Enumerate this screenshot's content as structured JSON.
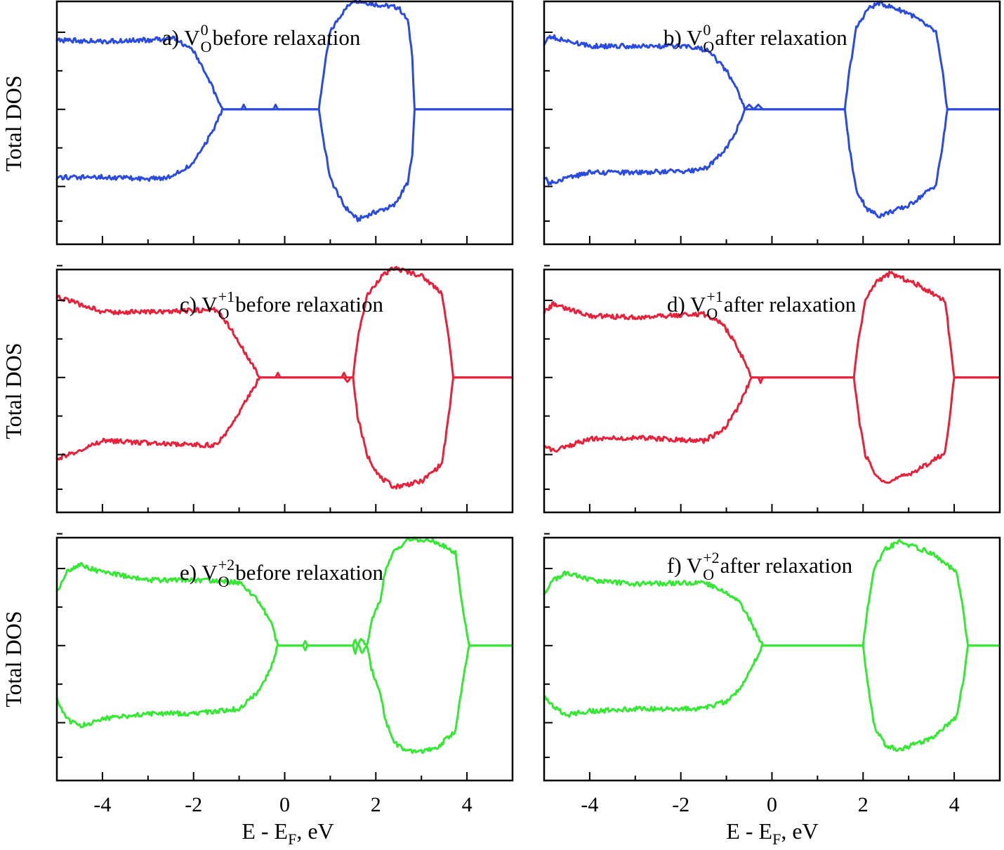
{
  "figure": {
    "y_label": "Total DOS",
    "x_label": "E - E",
    "x_label_sub": "F",
    "x_label_unit": ", eV"
  },
  "chart_data": [
    {
      "type": "line",
      "panel": "a",
      "color": "#2a4be0",
      "title": {
        "prefix": "a) V",
        "sup": "0",
        "sub": "O",
        "suffix": " before relaxation"
      },
      "xlim": [
        -5,
        5
      ],
      "x_ticks": [
        -4,
        -2,
        0,
        2,
        4
      ],
      "ylim": [
        -1.75,
        1.4
      ],
      "y_ticks": [
        -1.45,
        -1,
        -0.5,
        0,
        0.5,
        1,
        1.45
      ],
      "gap": [
        -1.35,
        0.75
      ],
      "band": [
        0.75,
        2.85
      ],
      "spin_up": [
        [
          -5,
          0.9
        ],
        [
          -4,
          0.88
        ],
        [
          -3,
          0.9
        ],
        [
          -2.4,
          0.92
        ],
        [
          -2,
          0.75
        ],
        [
          -1.6,
          0.3
        ],
        [
          -1.45,
          0.08
        ],
        [
          -1.35,
          0
        ],
        [
          -0.95,
          0
        ],
        [
          -0.9,
          0.06
        ],
        [
          -0.85,
          0
        ],
        [
          -0.25,
          0
        ],
        [
          -0.2,
          0.06
        ],
        [
          -0.15,
          0
        ],
        [
          0.75,
          0
        ],
        [
          0.85,
          0.45
        ],
        [
          1.0,
          1.0
        ],
        [
          1.2,
          1.2
        ],
        [
          1.5,
          1.42
        ],
        [
          2,
          1.36
        ],
        [
          2.5,
          1.32
        ],
        [
          2.7,
          1.15
        ],
        [
          2.8,
          0.7
        ],
        [
          2.85,
          0
        ]
      ],
      "spin_down": [
        [
          -5,
          -0.88
        ],
        [
          -4,
          -0.88
        ],
        [
          -3,
          -0.9
        ],
        [
          -2.5,
          -0.88
        ],
        [
          -2,
          -0.7
        ],
        [
          -1.6,
          -0.3
        ],
        [
          -1.35,
          0
        ],
        [
          0.75,
          0
        ],
        [
          0.85,
          -0.4
        ],
        [
          1.0,
          -0.9
        ],
        [
          1.3,
          -1.25
        ],
        [
          1.6,
          -1.43
        ],
        [
          2,
          -1.33
        ],
        [
          2.4,
          -1.25
        ],
        [
          2.7,
          -0.95
        ],
        [
          2.8,
          -0.6
        ],
        [
          2.85,
          0
        ]
      ]
    },
    {
      "type": "line",
      "panel": "b",
      "color": "#2a4be0",
      "title": {
        "prefix": "b) V",
        "sup": "0",
        "sub": "O",
        "suffix": " after relaxation"
      },
      "xlim": [
        -5,
        5
      ],
      "x_ticks": [
        -4,
        -2,
        0,
        2,
        4
      ],
      "ylim": [
        -1.75,
        1.4
      ],
      "y_ticks": [
        -1.45,
        -1,
        -0.5,
        0,
        0.5,
        1,
        1.45
      ],
      "gap": [
        -0.6,
        1.6
      ],
      "band": [
        1.6,
        3.85
      ],
      "spin_up": [
        [
          -5,
          0.85
        ],
        [
          -4.9,
          0.95
        ],
        [
          -4,
          0.82
        ],
        [
          -3,
          0.82
        ],
        [
          -1.8,
          0.82
        ],
        [
          -1.4,
          0.76
        ],
        [
          -1.0,
          0.5
        ],
        [
          -0.8,
          0.3
        ],
        [
          -0.65,
          0.08
        ],
        [
          -0.6,
          0
        ],
        [
          -0.5,
          0.06
        ],
        [
          -0.4,
          0
        ],
        [
          -0.3,
          0.06
        ],
        [
          -0.2,
          0
        ],
        [
          1.6,
          0
        ],
        [
          1.7,
          0.5
        ],
        [
          1.85,
          1.05
        ],
        [
          2.1,
          1.3
        ],
        [
          2.35,
          1.38
        ],
        [
          3,
          1.25
        ],
        [
          3.6,
          1.0
        ],
        [
          3.75,
          0.45
        ],
        [
          3.85,
          0
        ]
      ],
      "spin_down": [
        [
          -5,
          -0.88
        ],
        [
          -4.9,
          -0.95
        ],
        [
          -4,
          -0.82
        ],
        [
          -3,
          -0.82
        ],
        [
          -1.8,
          -0.8
        ],
        [
          -1.4,
          -0.75
        ],
        [
          -1.0,
          -0.5
        ],
        [
          -0.8,
          -0.3
        ],
        [
          -0.6,
          0
        ],
        [
          1.6,
          0
        ],
        [
          1.7,
          -0.5
        ],
        [
          1.85,
          -1.05
        ],
        [
          2.1,
          -1.3
        ],
        [
          2.35,
          -1.38
        ],
        [
          3,
          -1.25
        ],
        [
          3.6,
          -0.98
        ],
        [
          3.75,
          -0.45
        ],
        [
          3.85,
          0
        ]
      ]
    },
    {
      "type": "line",
      "panel": "c",
      "color": "#e8203a",
      "title": {
        "prefix": "c) V",
        "sup": "+1",
        "sub": "O",
        "suffix": " before relaxation"
      },
      "xlim": [
        -5,
        5
      ],
      "x_ticks": [
        -4,
        -2,
        0,
        2,
        4
      ],
      "ylim": [
        -1.75,
        1.4
      ],
      "y_ticks": [
        -1.45,
        -1,
        -0.5,
        0,
        0.5,
        1,
        1.45
      ],
      "gap": [
        -0.55,
        1.5
      ],
      "band": [
        1.5,
        3.7
      ],
      "spin_up": [
        [
          -5,
          1.05
        ],
        [
          -4.5,
          0.95
        ],
        [
          -4,
          0.85
        ],
        [
          -3,
          0.85
        ],
        [
          -1.5,
          0.88
        ],
        [
          -1.2,
          0.65
        ],
        [
          -0.9,
          0.35
        ],
        [
          -0.7,
          0.15
        ],
        [
          -0.55,
          0
        ],
        [
          -0.2,
          0
        ],
        [
          -0.15,
          0.06
        ],
        [
          -0.1,
          0
        ],
        [
          1.25,
          0
        ],
        [
          1.3,
          0.06
        ],
        [
          1.35,
          0
        ],
        [
          1.5,
          0
        ],
        [
          1.6,
          0.5
        ],
        [
          1.8,
          1.05
        ],
        [
          2.1,
          1.3
        ],
        [
          2.4,
          1.42
        ],
        [
          3,
          1.32
        ],
        [
          3.45,
          1.1
        ],
        [
          3.6,
          0.5
        ],
        [
          3.7,
          0
        ]
      ],
      "spin_down": [
        [
          -5,
          -1.05
        ],
        [
          -4.5,
          -0.95
        ],
        [
          -4,
          -0.82
        ],
        [
          -3,
          -0.85
        ],
        [
          -1.5,
          -0.88
        ],
        [
          -1.2,
          -0.65
        ],
        [
          -0.9,
          -0.35
        ],
        [
          -0.7,
          -0.15
        ],
        [
          -0.55,
          0
        ],
        [
          1.3,
          0
        ],
        [
          1.38,
          -0.06
        ],
        [
          1.45,
          0
        ],
        [
          1.5,
          0
        ],
        [
          1.6,
          -0.5
        ],
        [
          1.8,
          -1.0
        ],
        [
          2.1,
          -1.3
        ],
        [
          2.4,
          -1.42
        ],
        [
          3,
          -1.35
        ],
        [
          3.45,
          -1.12
        ],
        [
          3.6,
          -0.5
        ],
        [
          3.7,
          0
        ]
      ]
    },
    {
      "type": "line",
      "panel": "d",
      "color": "#e8203a",
      "title": {
        "prefix": "d) V",
        "sup": "+1",
        "sub": "O",
        "suffix": " after relaxation"
      },
      "xlim": [
        -5,
        5
      ],
      "x_ticks": [
        -4,
        -2,
        0,
        2,
        4
      ],
      "ylim": [
        -1.75,
        1.4
      ],
      "y_ticks": [
        -1.45,
        -1,
        -0.5,
        0,
        0.5,
        1,
        1.45
      ],
      "gap": [
        -0.45,
        1.8
      ],
      "band": [
        1.8,
        4.0
      ],
      "spin_up": [
        [
          -5,
          0.85
        ],
        [
          -4.8,
          0.95
        ],
        [
          -4,
          0.8
        ],
        [
          -3,
          0.78
        ],
        [
          -1.5,
          0.82
        ],
        [
          -1.1,
          0.7
        ],
        [
          -0.8,
          0.45
        ],
        [
          -0.6,
          0.2
        ],
        [
          -0.45,
          0
        ],
        [
          1.8,
          0
        ],
        [
          1.9,
          0.5
        ],
        [
          2.05,
          1.0
        ],
        [
          2.3,
          1.25
        ],
        [
          2.6,
          1.35
        ],
        [
          3.2,
          1.2
        ],
        [
          3.8,
          1.0
        ],
        [
          3.9,
          0.5
        ],
        [
          4.0,
          0
        ]
      ],
      "spin_down": [
        [
          -5,
          -0.9
        ],
        [
          -4.8,
          -0.95
        ],
        [
          -4,
          -0.8
        ],
        [
          -3,
          -0.78
        ],
        [
          -1.5,
          -0.82
        ],
        [
          -1.1,
          -0.7
        ],
        [
          -0.8,
          -0.45
        ],
        [
          -0.6,
          -0.2
        ],
        [
          -0.45,
          0
        ],
        [
          -0.3,
          0
        ],
        [
          -0.25,
          -0.07
        ],
        [
          -0.2,
          0
        ],
        [
          1.8,
          0
        ],
        [
          1.9,
          -0.5
        ],
        [
          2.05,
          -1.0
        ],
        [
          2.3,
          -1.3
        ],
        [
          2.6,
          -1.35
        ],
        [
          3.2,
          -1.2
        ],
        [
          3.8,
          -0.98
        ],
        [
          3.9,
          -0.5
        ],
        [
          4.0,
          0
        ]
      ]
    },
    {
      "type": "line",
      "panel": "e",
      "color": "#34e834",
      "title": {
        "prefix": "e) V",
        "sup": "+2",
        "sub": "O",
        "suffix": " before relaxation"
      },
      "xlim": [
        -5,
        5
      ],
      "x_ticks": [
        -4,
        -2,
        0,
        2,
        4
      ],
      "ylim": [
        -1.75,
        1.4
      ],
      "y_ticks": [
        -1.45,
        -1,
        -0.5,
        0,
        0.5,
        1,
        1.45
      ],
      "gap": [
        -0.15,
        1.5
      ],
      "band": [
        1.5,
        4.05
      ],
      "spin_up": [
        [
          -5,
          0.7
        ],
        [
          -4.8,
          0.95
        ],
        [
          -4.5,
          1.05
        ],
        [
          -4,
          0.95
        ],
        [
          -3,
          0.85
        ],
        [
          -2,
          0.85
        ],
        [
          -1,
          0.82
        ],
        [
          -0.6,
          0.6
        ],
        [
          -0.3,
          0.3
        ],
        [
          -0.15,
          0
        ],
        [
          0.4,
          0
        ],
        [
          0.45,
          0.06
        ],
        [
          0.5,
          0
        ],
        [
          1.5,
          0
        ],
        [
          1.55,
          0.1
        ],
        [
          1.6,
          0
        ],
        [
          1.7,
          0.08
        ],
        [
          1.8,
          0
        ],
        [
          1.9,
          0.3
        ],
        [
          2.1,
          0.6
        ],
        [
          2.2,
          0.95
        ],
        [
          2.4,
          1.22
        ],
        [
          2.7,
          1.38
        ],
        [
          3.3,
          1.35
        ],
        [
          3.75,
          1.2
        ],
        [
          3.9,
          0.5
        ],
        [
          4.05,
          0
        ]
      ],
      "spin_down": [
        [
          -5,
          -0.7
        ],
        [
          -4.8,
          -0.95
        ],
        [
          -4.5,
          -1.05
        ],
        [
          -4,
          -0.95
        ],
        [
          -3,
          -0.88
        ],
        [
          -2,
          -0.88
        ],
        [
          -1,
          -0.82
        ],
        [
          -0.6,
          -0.6
        ],
        [
          -0.3,
          -0.3
        ],
        [
          -0.15,
          0
        ],
        [
          0.4,
          0
        ],
        [
          0.45,
          -0.06
        ],
        [
          0.5,
          0
        ],
        [
          1.5,
          0
        ],
        [
          1.55,
          -0.1
        ],
        [
          1.6,
          0
        ],
        [
          1.7,
          -0.08
        ],
        [
          1.8,
          0
        ],
        [
          1.9,
          -0.3
        ],
        [
          2.1,
          -0.6
        ],
        [
          2.2,
          -0.95
        ],
        [
          2.4,
          -1.25
        ],
        [
          2.7,
          -1.38
        ],
        [
          3.3,
          -1.35
        ],
        [
          3.75,
          -1.1
        ],
        [
          3.9,
          -0.5
        ],
        [
          4.05,
          0
        ]
      ]
    },
    {
      "type": "line",
      "panel": "f",
      "color": "#34e834",
      "title": {
        "prefix": "f) V",
        "sup": "+2",
        "sub": "O",
        "suffix": " after relaxation"
      },
      "xlim": [
        -5,
        5
      ],
      "x_ticks": [
        -4,
        -2,
        0,
        2,
        4
      ],
      "ylim": [
        -1.75,
        1.4
      ],
      "y_ticks": [
        -1.45,
        -1,
        -0.5,
        0,
        0.5,
        1,
        1.45
      ],
      "gap": [
        -0.2,
        2.0
      ],
      "band": [
        2.0,
        4.3
      ],
      "spin_up": [
        [
          -5,
          0.65
        ],
        [
          -4.8,
          0.85
        ],
        [
          -4.5,
          0.95
        ],
        [
          -4,
          0.85
        ],
        [
          -3,
          0.8
        ],
        [
          -1.5,
          0.82
        ],
        [
          -1.0,
          0.7
        ],
        [
          -0.7,
          0.55
        ],
        [
          -0.45,
          0.3
        ],
        [
          -0.3,
          0.1
        ],
        [
          -0.2,
          0
        ],
        [
          2.0,
          0
        ],
        [
          2.1,
          0.5
        ],
        [
          2.25,
          1.0
        ],
        [
          2.5,
          1.25
        ],
        [
          2.8,
          1.35
        ],
        [
          3.5,
          1.2
        ],
        [
          4.05,
          0.95
        ],
        [
          4.2,
          0.45
        ],
        [
          4.3,
          0
        ]
      ],
      "spin_down": [
        [
          -5,
          -0.65
        ],
        [
          -4.8,
          -0.8
        ],
        [
          -4.5,
          -0.9
        ],
        [
          -4,
          -0.85
        ],
        [
          -3,
          -0.82
        ],
        [
          -1.5,
          -0.82
        ],
        [
          -1.0,
          -0.72
        ],
        [
          -0.7,
          -0.55
        ],
        [
          -0.45,
          -0.3
        ],
        [
          -0.3,
          -0.1
        ],
        [
          -0.2,
          0
        ],
        [
          2.0,
          0
        ],
        [
          2.1,
          -0.5
        ],
        [
          2.25,
          -1.05
        ],
        [
          2.5,
          -1.3
        ],
        [
          2.8,
          -1.35
        ],
        [
          3.5,
          -1.2
        ],
        [
          4.05,
          -0.92
        ],
        [
          4.2,
          -0.45
        ],
        [
          4.3,
          0
        ]
      ]
    }
  ]
}
